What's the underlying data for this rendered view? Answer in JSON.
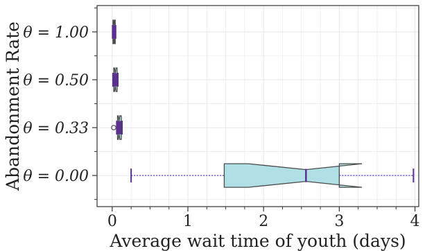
{
  "chart_data": {
    "type": "boxplot",
    "orientation": "horizontal",
    "notched": true,
    "title": "",
    "xlabel": "Average wait time of youth (days)",
    "ylabel": "Abandonment Rate",
    "xlim": [
      -0.2,
      4.05
    ],
    "xticks": [
      0,
      1,
      2,
      3,
      4
    ],
    "xtick_labels": [
      "0",
      "1",
      "2",
      "3",
      "4"
    ],
    "grid": true,
    "colors": {
      "box_fill": "#b0e0e6",
      "box_edge": "#4a4a4a",
      "median": "#5b2e91",
      "whisker": "#6a5acd",
      "cap": "#5b2e91",
      "grid": "#e6e6e6"
    },
    "categories": [
      {
        "label": "θ = 1.00",
        "q1": 0.01,
        "median": 0.025,
        "q3": 0.04,
        "notch_low": 0.018,
        "notch_high": 0.032,
        "whisker_low": 0.005,
        "whisker_high": 0.045,
        "outliers": []
      },
      {
        "label": "θ = 0.50",
        "q1": 0.02,
        "median": 0.04,
        "q3": 0.065,
        "notch_low": 0.03,
        "notch_high": 0.05,
        "whisker_low": 0.01,
        "whisker_high": 0.075,
        "outliers": []
      },
      {
        "label": "θ = 0.33",
        "q1": 0.07,
        "median": 0.09,
        "q3": 0.12,
        "notch_low": 0.08,
        "notch_high": 0.1,
        "whisker_low": 0.06,
        "whisker_high": 0.13,
        "outliers": [
          0.02
        ]
      },
      {
        "label": "θ = 0.00",
        "q1": 1.48,
        "median": 2.56,
        "q3": 3.0,
        "notch_low": 1.8,
        "notch_high": 3.3,
        "whisker_low": 0.25,
        "whisker_high": 3.98,
        "outliers": []
      }
    ]
  }
}
